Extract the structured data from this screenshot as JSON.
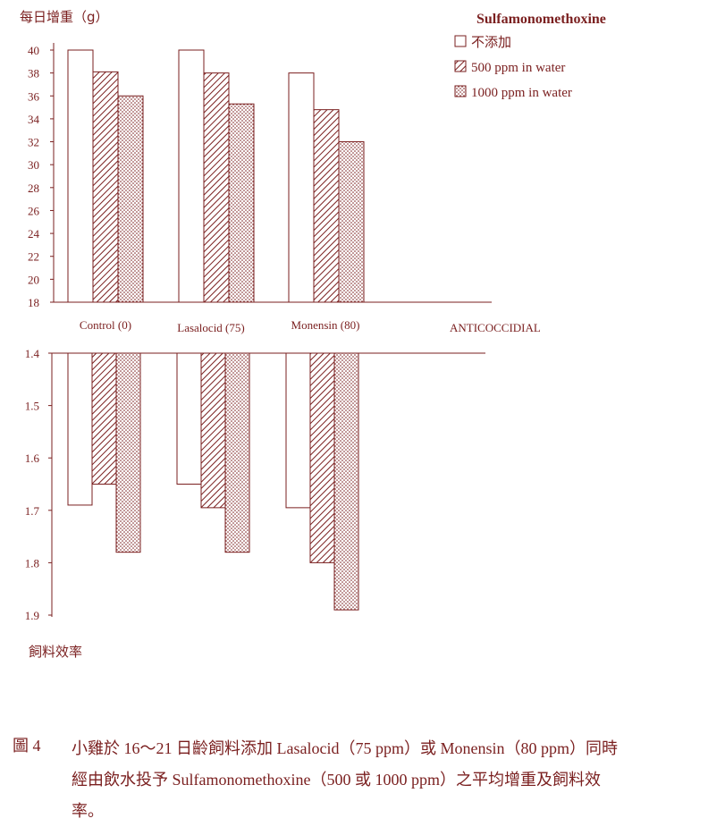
{
  "colors": {
    "ink": "#7a1f1f",
    "background": "#ffffff"
  },
  "chart_data": [
    {
      "type": "bar",
      "ylabel": "每日增重（g）",
      "xlabel": "ANTICOCCIDIAL",
      "categories": [
        "Control (0)",
        "Lasalocid (75)",
        "Monensin (80)"
      ],
      "ylim": [
        18,
        40
      ],
      "yticks": [
        "40",
        "38",
        "36",
        "34",
        "32",
        "30",
        "28",
        "26",
        "24",
        "22",
        "20",
        "18"
      ],
      "legend_title": "Sulfamonomethoxine",
      "legend_position": "top-right",
      "series": [
        {
          "name": "不添加",
          "pattern": "blank",
          "values": [
            40.0,
            40.0,
            38.0
          ]
        },
        {
          "name": "500 ppm  in  water",
          "pattern": "hatch",
          "values": [
            38.1,
            38.0,
            34.8
          ]
        },
        {
          "name": "1000 ppm  in  water",
          "pattern": "dots",
          "values": [
            36.0,
            35.3,
            32.0
          ]
        }
      ]
    },
    {
      "type": "bar",
      "orientation": "inverted",
      "ylabel": "飼料效率",
      "categories": [
        "Control (0)",
        "Lasalocid (75)",
        "Monensin (80)"
      ],
      "ylim": [
        1.4,
        1.9
      ],
      "yticks": [
        "1.4",
        "1.5",
        "1.6",
        "1.7",
        "1.8",
        "1.9"
      ],
      "series": [
        {
          "name": "不添加",
          "pattern": "blank",
          "values": [
            1.69,
            1.65,
            1.695
          ]
        },
        {
          "name": "500 ppm  in  water",
          "pattern": "hatch",
          "values": [
            1.65,
            1.695,
            1.8
          ]
        },
        {
          "name": "1000 ppm  in  water",
          "pattern": "dots",
          "values": [
            1.78,
            1.78,
            1.89
          ]
        }
      ]
    }
  ],
  "caption": {
    "label": "圖 4",
    "text": "小雞於 16～21 日齡飼料添加 Lasalocid（75 ppm）或 Monensin（80 ppm）同時經由飲水投予 Sulfamonomethoxine（500 或 1000 ppm）之平均增重及飼料效率。"
  }
}
